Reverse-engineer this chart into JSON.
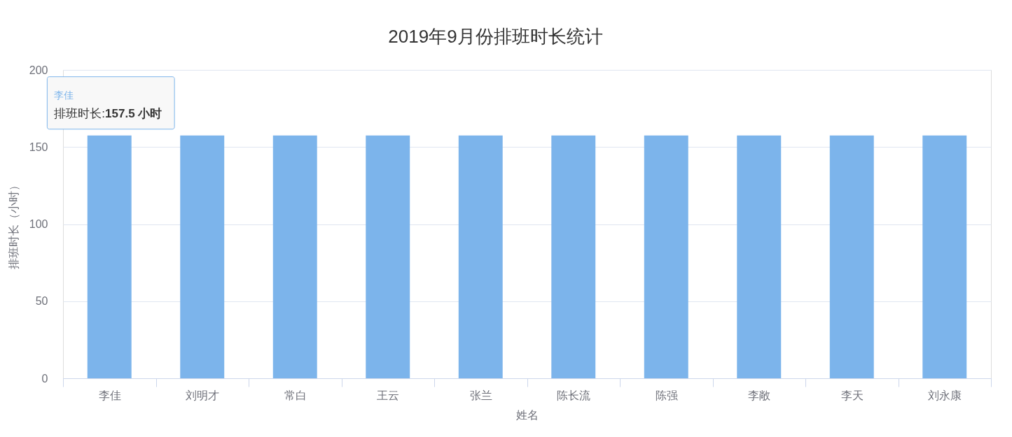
{
  "chart_data": {
    "type": "bar",
    "title": "2019年9月份排班时长统计",
    "xlabel": "姓名",
    "ylabel": "排班时长（小时）",
    "categories": [
      "李佳",
      "刘明才",
      "常白",
      "王云",
      "张兰",
      "陈长流",
      "陈强",
      "李敞",
      "李天",
      "刘永康"
    ],
    "values": [
      157.5,
      157.5,
      157.5,
      157.5,
      157.5,
      157.5,
      157.5,
      157.5,
      157.5,
      157.5
    ],
    "color": "#7cb4eb",
    "ylim": [
      0,
      200
    ],
    "yticks": [
      0,
      50,
      100,
      150,
      200
    ],
    "grid": "y",
    "annotations": [
      "李佳",
      {
        "text": "排班时长:157.5 小时",
        "x": "李佳",
        "y": 157.5
      }
    ]
  }
}
